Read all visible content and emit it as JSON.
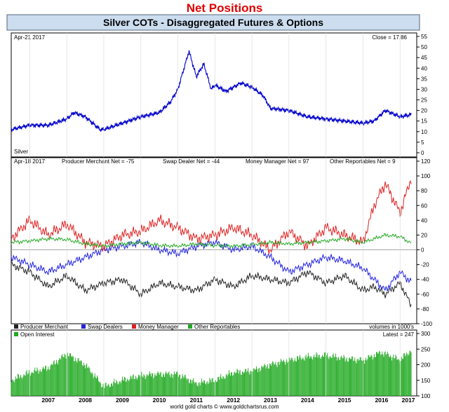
{
  "header": {
    "title": "Net Positions",
    "subtitle": "Silver COTs - Disaggregated Futures & Options"
  },
  "footer": {
    "credit": "world gold charts © www.goldchartsrus.com"
  },
  "colors": {
    "silver": "#0000cc",
    "producer": "#222222",
    "swap": "#2222dd",
    "money": "#dd2222",
    "other": "#22aa22",
    "oi": "#22aa22",
    "panel_bg": "#ffffff",
    "header_bg": "#ccddf0"
  },
  "chart_data": [
    {
      "type": "line",
      "panel": "silver",
      "date_label": "Apr-21  2017",
      "close_label": "Close = 17.86",
      "series_label": "Silver",
      "ylim": [
        0,
        55
      ],
      "yticks": [
        "0",
        "5",
        "10",
        "15",
        "20",
        "25",
        "30",
        "35",
        "40",
        "45",
        "50",
        "55"
      ],
      "x": [
        2006.5,
        2007.0,
        2007.5,
        2008.0,
        2008.2,
        2008.5,
        2008.7,
        2008.9,
        2009.0,
        2009.5,
        2010.0,
        2010.5,
        2010.8,
        2011.0,
        2011.3,
        2011.5,
        2011.7,
        2011.9,
        2012.0,
        2012.3,
        2012.7,
        2013.0,
        2013.3,
        2013.5,
        2014.0,
        2014.5,
        2015.0,
        2015.5,
        2016.0,
        2016.3,
        2016.6,
        2017.0,
        2017.3
      ],
      "values": [
        11,
        13,
        13,
        16,
        19,
        17,
        14,
        11,
        11,
        14,
        17,
        19,
        24,
        30,
        48,
        36,
        42,
        30,
        32,
        29,
        33,
        31,
        27,
        21,
        20,
        17,
        16,
        15,
        14,
        15,
        20,
        17,
        18
      ]
    },
    {
      "type": "line",
      "panel": "cot",
      "date_label": "Apr-18  2017",
      "ylim": [
        -100,
        120
      ],
      "yticks": [
        "-100",
        "-80",
        "-60",
        "-40",
        "-20",
        "0",
        "20",
        "40",
        "60",
        "80",
        "100",
        "120"
      ],
      "volume_note": "volumes in 1000's",
      "x": [
        2006.5,
        2007.0,
        2007.5,
        2008.0,
        2008.5,
        2009.0,
        2009.5,
        2010.0,
        2010.5,
        2011.0,
        2011.5,
        2012.0,
        2012.5,
        2013.0,
        2013.5,
        2014.0,
        2014.5,
        2015.0,
        2015.5,
        2016.0,
        2016.3,
        2016.6,
        2017.0,
        2017.3
      ],
      "series": [
        {
          "name": "Producer Merchant",
          "label": "Producer Merchant Net = -75",
          "color": "#222222",
          "values": [
            -20,
            -30,
            -50,
            -35,
            -55,
            -45,
            -40,
            -60,
            -45,
            -50,
            -55,
            -40,
            -50,
            -35,
            -40,
            -45,
            -30,
            -45,
            -35,
            -55,
            -50,
            -60,
            -45,
            -75
          ]
        },
        {
          "name": "Swap Dealers",
          "label": "Swap Dealer Net = -44",
          "color": "#2222dd",
          "values": [
            -10,
            -20,
            -30,
            -20,
            -10,
            0,
            5,
            10,
            0,
            -5,
            5,
            10,
            0,
            5,
            -10,
            -30,
            -20,
            -10,
            -15,
            -25,
            -40,
            -55,
            -30,
            -44
          ]
        },
        {
          "name": "Money Manager",
          "label": "Money Manager Net = 97",
          "color": "#dd2222",
          "values": [
            15,
            40,
            20,
            35,
            10,
            5,
            20,
            25,
            40,
            30,
            15,
            20,
            30,
            20,
            0,
            25,
            5,
            30,
            20,
            10,
            60,
            90,
            50,
            97
          ]
        },
        {
          "name": "Other Reportables",
          "label": "Other Reportables Net = 9",
          "color": "#22aa22",
          "values": [
            10,
            12,
            15,
            14,
            8,
            5,
            8,
            10,
            6,
            5,
            8,
            6,
            5,
            7,
            10,
            8,
            10,
            12,
            15,
            10,
            15,
            20,
            18,
            9
          ]
        }
      ]
    },
    {
      "type": "bar",
      "panel": "open_interest",
      "name": "Open Interest",
      "latest_label": "Latest = 247",
      "ylim": [
        100,
        300
      ],
      "yticks": [
        "100",
        "150",
        "200",
        "250",
        "300"
      ],
      "x": [
        2006.5,
        2007.0,
        2007.5,
        2008.0,
        2008.5,
        2009.0,
        2009.5,
        2010.0,
        2010.5,
        2011.0,
        2011.5,
        2012.0,
        2012.5,
        2013.0,
        2013.5,
        2014.0,
        2014.5,
        2015.0,
        2015.5,
        2016.0,
        2016.5,
        2017.0,
        2017.3
      ],
      "values": [
        150,
        175,
        190,
        235,
        200,
        130,
        150,
        165,
        170,
        170,
        140,
        150,
        175,
        180,
        200,
        215,
        225,
        230,
        220,
        215,
        240,
        215,
        247
      ]
    }
  ],
  "x_axis": {
    "years": [
      "2007",
      "2008",
      "2009",
      "2010",
      "2011",
      "2012",
      "2013",
      "2014",
      "2015",
      "2016",
      "2017"
    ],
    "range": [
      2006.5,
      2017.45
    ]
  }
}
